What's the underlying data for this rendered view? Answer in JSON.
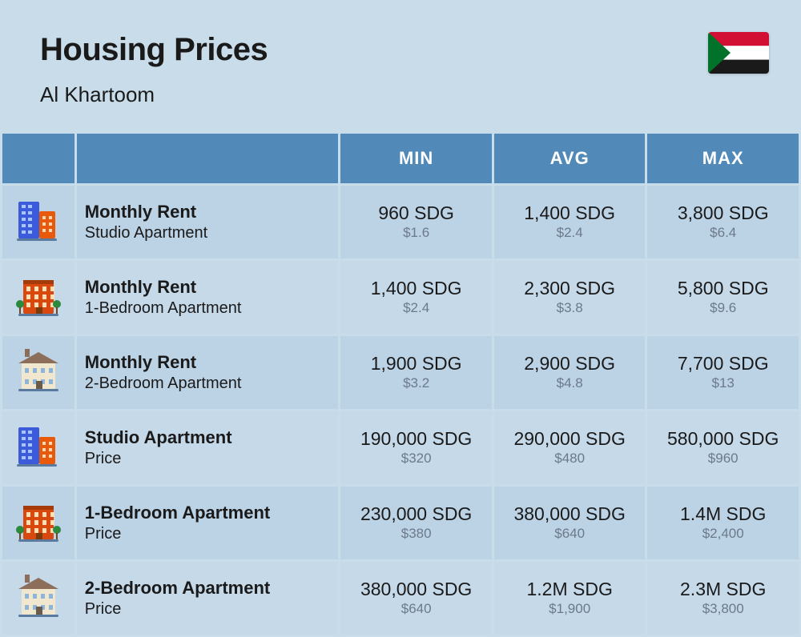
{
  "header": {
    "title": "Housing Prices",
    "subtitle": "Al Khartoom"
  },
  "flag": {
    "stripe_top": "#d21034",
    "stripe_mid": "#ffffff",
    "stripe_bot": "#1a1a1a",
    "triangle": "#007229"
  },
  "columns": [
    "",
    "",
    "MIN",
    "AVG",
    "MAX"
  ],
  "rows": [
    {
      "icon": "buildings",
      "title": "Monthly Rent",
      "sub": "Studio Apartment",
      "min": {
        "v": "960 SDG",
        "u": "$1.6"
      },
      "avg": {
        "v": "1,400 SDG",
        "u": "$2.4"
      },
      "max": {
        "v": "3,800 SDG",
        "u": "$6.4"
      }
    },
    {
      "icon": "apartment",
      "title": "Monthly Rent",
      "sub": "1-Bedroom Apartment",
      "min": {
        "v": "1,400 SDG",
        "u": "$2.4"
      },
      "avg": {
        "v": "2,300 SDG",
        "u": "$3.8"
      },
      "max": {
        "v": "5,800 SDG",
        "u": "$9.6"
      }
    },
    {
      "icon": "house",
      "title": "Monthly Rent",
      "sub": "2-Bedroom Apartment",
      "min": {
        "v": "1,900 SDG",
        "u": "$3.2"
      },
      "avg": {
        "v": "2,900 SDG",
        "u": "$4.8"
      },
      "max": {
        "v": "7,700 SDG",
        "u": "$13"
      }
    },
    {
      "icon": "buildings",
      "title": "Studio Apartment",
      "sub": "Price",
      "min": {
        "v": "190,000 SDG",
        "u": "$320"
      },
      "avg": {
        "v": "290,000 SDG",
        "u": "$480"
      },
      "max": {
        "v": "580,000 SDG",
        "u": "$960"
      }
    },
    {
      "icon": "apartment",
      "title": "1-Bedroom Apartment",
      "sub": "Price",
      "min": {
        "v": "230,000 SDG",
        "u": "$380"
      },
      "avg": {
        "v": "380,000 SDG",
        "u": "$640"
      },
      "max": {
        "v": "1.4M SDG",
        "u": "$2,400"
      }
    },
    {
      "icon": "house",
      "title": "2-Bedroom Apartment",
      "sub": "Price",
      "min": {
        "v": "380,000 SDG",
        "u": "$640"
      },
      "avg": {
        "v": "1.2M SDG",
        "u": "$1,900"
      },
      "max": {
        "v": "2.3M SDG",
        "u": "$3,800"
      }
    }
  ],
  "style": {
    "page_bg": "#c9dcea",
    "header_bg": "#5189b8",
    "row_bg_a": "#bcd2e5",
    "row_bg_b": "#c5d9e9",
    "title_color": "#1a1a1a",
    "sub_val_color": "#6b7a8a",
    "title_fontsize": 40,
    "subtitle_fontsize": 26,
    "th_fontsize": 22,
    "row_title_fontsize": 22,
    "row_sub_fontsize": 20,
    "main_val_fontsize": 23,
    "sub_val_fontsize": 17
  },
  "icons": {
    "buildings": {
      "left": "#3b5bdb",
      "right": "#e8590c"
    },
    "apartment": {
      "body": "#d9480f",
      "trim": "#a63b0a",
      "tree": "#2b8a3e"
    },
    "house": {
      "body": "#f1e7cf",
      "roof": "#8d6e5a",
      "trim": "#6b5b4a"
    }
  }
}
